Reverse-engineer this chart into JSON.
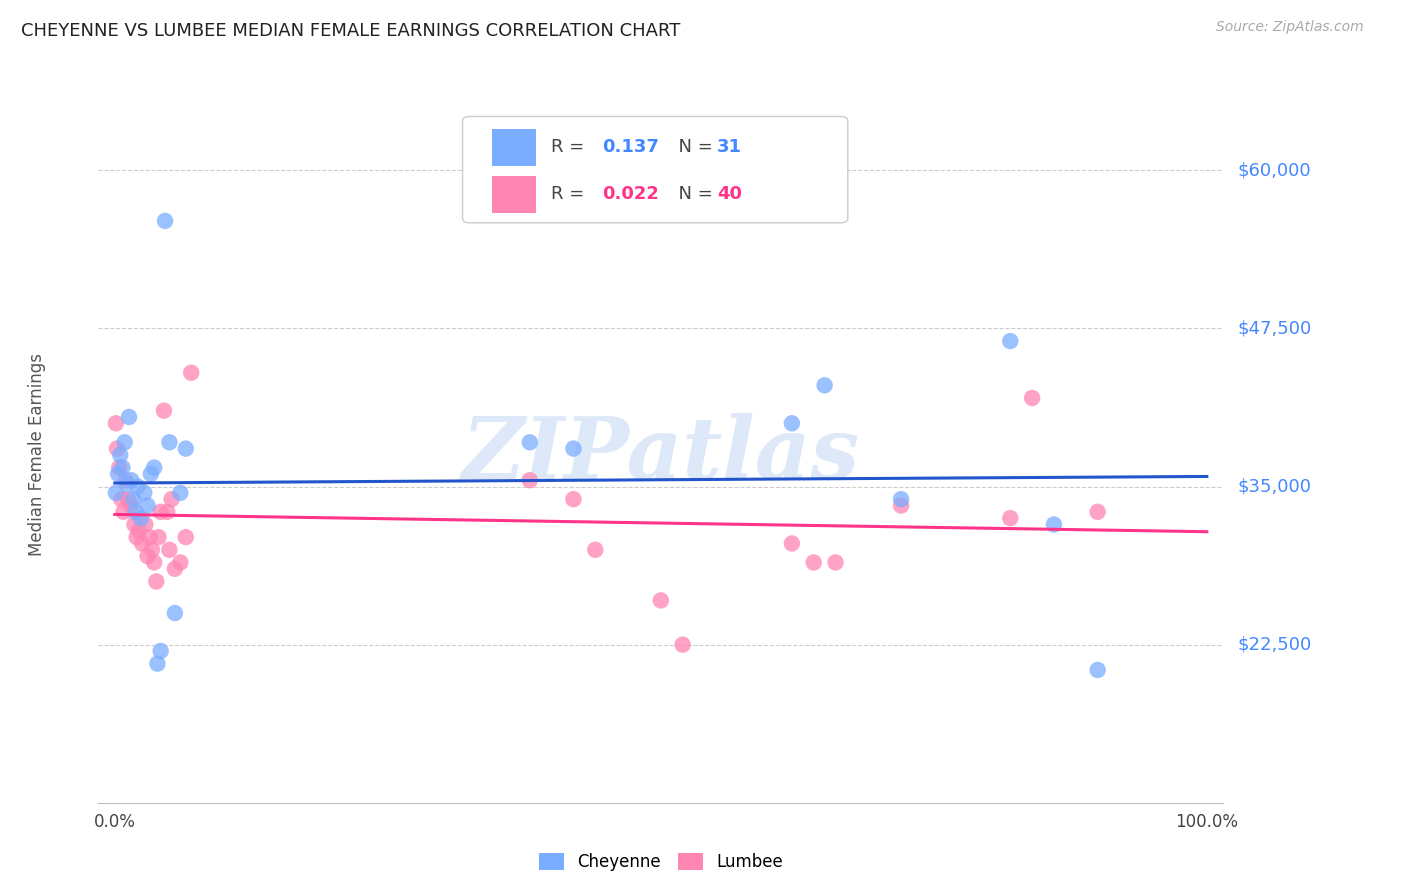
{
  "title": "CHEYENNE VS LUMBEE MEDIAN FEMALE EARNINGS CORRELATION CHART",
  "source": "Source: ZipAtlas.com",
  "ylabel": "Median Female Earnings",
  "yticks": [
    22500,
    35000,
    47500,
    60000
  ],
  "ytick_labels": [
    "$22,500",
    "$35,000",
    "$47,500",
    "$60,000"
  ],
  "ylim": [
    10000,
    65000
  ],
  "xlim": [
    -0.015,
    1.015
  ],
  "cheyenne_R": 0.137,
  "cheyenne_N": 31,
  "lumbee_R": 0.022,
  "lumbee_N": 40,
  "cheyenne_color": "#7aadff",
  "lumbee_color": "#ff85b3",
  "blue_line_color": "#2255cc",
  "pink_line_color": "#ff3388",
  "watermark": "ZIPatlas",
  "watermark_color": "#dde8f8",
  "cheyenne_x": [
    0.001,
    0.003,
    0.005,
    0.007,
    0.009,
    0.011,
    0.013,
    0.015,
    0.017,
    0.019,
    0.021,
    0.024,
    0.027,
    0.03,
    0.033,
    0.036,
    0.039,
    0.042,
    0.046,
    0.05,
    0.055,
    0.06,
    0.065,
    0.38,
    0.42,
    0.62,
    0.65,
    0.72,
    0.82,
    0.86,
    0.9
  ],
  "cheyenne_y": [
    34500,
    36000,
    37500,
    36500,
    38500,
    35200,
    40500,
    35500,
    34000,
    33000,
    35000,
    32500,
    34500,
    33500,
    36000,
    36500,
    21000,
    22000,
    56000,
    38500,
    25000,
    34500,
    38000,
    38500,
    38000,
    40000,
    43000,
    34000,
    46500,
    32000,
    20500
  ],
  "lumbee_x": [
    0.001,
    0.002,
    0.004,
    0.006,
    0.008,
    0.01,
    0.012,
    0.015,
    0.018,
    0.02,
    0.022,
    0.025,
    0.028,
    0.03,
    0.032,
    0.034,
    0.036,
    0.038,
    0.04,
    0.042,
    0.045,
    0.048,
    0.05,
    0.052,
    0.055,
    0.06,
    0.065,
    0.07,
    0.38,
    0.42,
    0.44,
    0.5,
    0.52,
    0.62,
    0.64,
    0.66,
    0.72,
    0.82,
    0.84,
    0.9
  ],
  "lumbee_y": [
    40000,
    38000,
    36500,
    34000,
    33000,
    35500,
    34000,
    33500,
    32000,
    31000,
    31500,
    30500,
    32000,
    29500,
    31000,
    30000,
    29000,
    27500,
    31000,
    33000,
    41000,
    33000,
    30000,
    34000,
    28500,
    29000,
    31000,
    44000,
    35500,
    34000,
    30000,
    26000,
    22500,
    30500,
    29000,
    29000,
    33500,
    32500,
    42000,
    33000
  ]
}
